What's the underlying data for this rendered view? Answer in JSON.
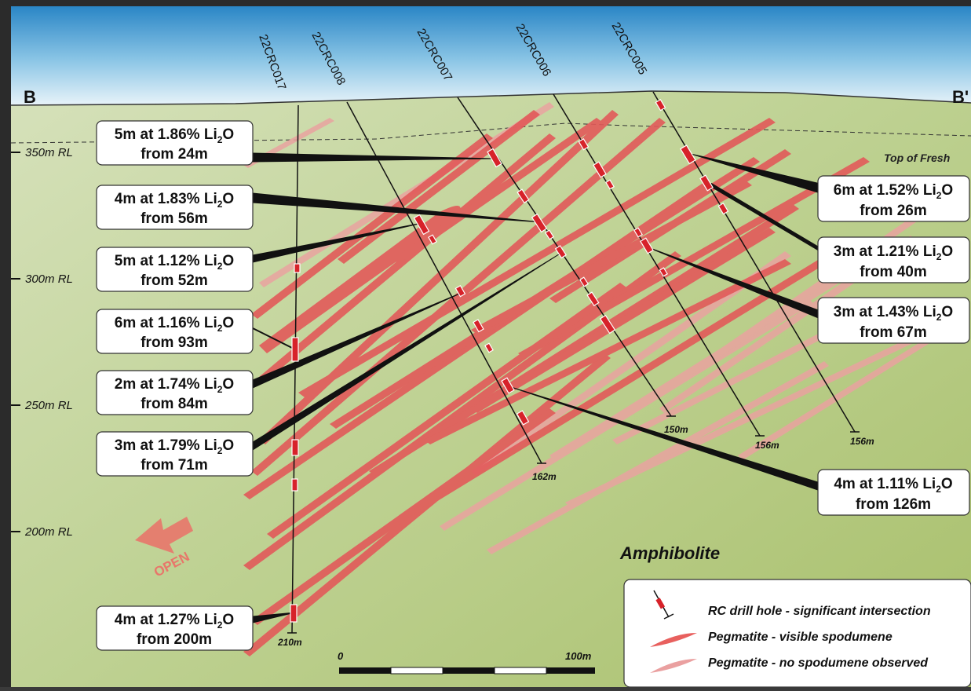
{
  "section": {
    "left_label": "B",
    "right_label": "B'",
    "top_of_fresh": "Top of Fresh",
    "rock_unit": "Amphibolite",
    "open_label": "OPEN"
  },
  "rl_labels": [
    "350m RL",
    "300m RL",
    "250m RL",
    "200m RL"
  ],
  "holes": [
    {
      "name": "22CRC017",
      "depth": "210m"
    },
    {
      "name": "22CRC008",
      "depth": "162m"
    },
    {
      "name": "22CRC007",
      "depth": "150m"
    },
    {
      "name": "22CRC006",
      "depth": "156m"
    },
    {
      "name": "22CRC005",
      "depth": "156m"
    }
  ],
  "intercepts_left": [
    {
      "grade": "5m at 1.86% Li",
      "sub": "2",
      "tail": "O",
      "from": "from 24m"
    },
    {
      "grade": "4m at 1.83% Li",
      "sub": "2",
      "tail": "O",
      "from": "from 56m"
    },
    {
      "grade": "5m at 1.12% Li",
      "sub": "2",
      "tail": "O",
      "from": "from 52m"
    },
    {
      "grade": "6m at 1.16% Li",
      "sub": "2",
      "tail": "O",
      "from": "from 93m"
    },
    {
      "grade": "2m at 1.74% Li",
      "sub": "2",
      "tail": "O",
      "from": "from 84m"
    },
    {
      "grade": "3m at 1.79% Li",
      "sub": "2",
      "tail": "O",
      "from": "from 71m"
    },
    {
      "grade": "4m at 1.27% Li",
      "sub": "2",
      "tail": "O",
      "from": "from 200m"
    }
  ],
  "intercepts_right": [
    {
      "grade": "6m at 1.52% Li",
      "sub": "2",
      "tail": "O",
      "from": "from 26m"
    },
    {
      "grade": "3m at 1.21% Li",
      "sub": "2",
      "tail": "O",
      "from": "from 40m"
    },
    {
      "grade": "3m at 1.43% Li",
      "sub": "2",
      "tail": "O",
      "from": "from 67m"
    },
    {
      "grade": "4m at 1.11% Li",
      "sub": "2",
      "tail": "O",
      "from": "from 126m"
    }
  ],
  "scale": {
    "start": "0",
    "end": "100m"
  },
  "legend": [
    {
      "label": "RC drill hole - significant intersection"
    },
    {
      "label": "Pegmatite - visible spodumene",
      "color": "#e8605e"
    },
    {
      "label": "Pegmatite - no spodumene observed",
      "color": "#eaa0a0"
    }
  ],
  "colors": {
    "sky_top": "#1f86c8",
    "ground": "#b5c98a",
    "pegmatite": "#e05a5a",
    "pegmatite_light": "#e9a3a0",
    "intersection": "#d7222a"
  }
}
